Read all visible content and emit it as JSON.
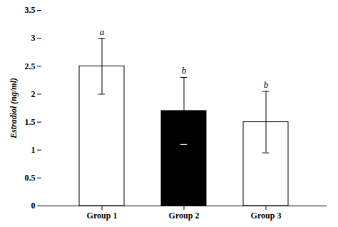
{
  "chart_data": {
    "type": "bar",
    "categories": [
      "Group 1",
      "Group 2",
      "Group 3"
    ],
    "values": [
      2.5,
      1.7,
      1.5
    ],
    "errors": [
      0.5,
      0.6,
      0.55
    ],
    "colors": [
      "white",
      "black",
      "white"
    ],
    "annotations": [
      "a",
      "b",
      "b"
    ],
    "ylabel": "Estradiol (ng/ml)",
    "ylim": [
      0,
      3.5
    ],
    "yticks": [
      0,
      0.5,
      1,
      1.5,
      2,
      2.5,
      3,
      3.5
    ],
    "grid": false
  }
}
